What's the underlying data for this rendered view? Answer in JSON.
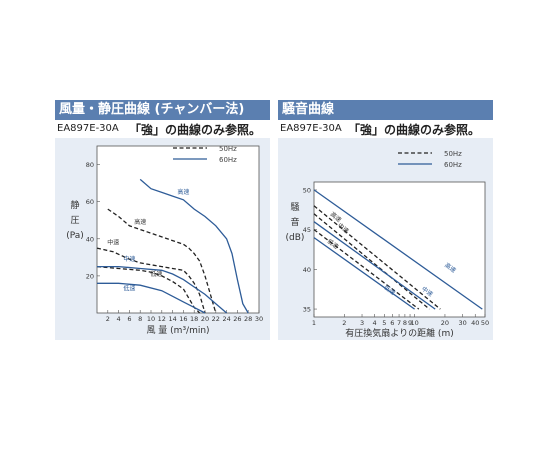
{
  "left_panel": {
    "title": "風量・静圧曲線 (チャンバー法)",
    "model": "EA897E-30A",
    "note": "「強」の曲線のみ参照。"
  },
  "right_panel": {
    "title": "騒音曲線",
    "model": "EA897E-30A",
    "note": "「強」の曲線のみ参照。"
  },
  "colors": {
    "blue": "#2e5c98",
    "dashed": "#222222",
    "header": "#5b7fb0",
    "plot_bg": "#e7edf5"
  },
  "chart_data": [
    {
      "type": "line",
      "xlabel": "風 量 (m³/min)",
      "ylabel_lines": [
        "静",
        "圧",
        "(Pa)"
      ],
      "xlim": [
        0,
        30
      ],
      "ylim": [
        0,
        90
      ],
      "xticks": [
        "2",
        "4",
        "6",
        "8",
        "10",
        "12",
        "14",
        "16",
        "18",
        "20",
        "22",
        "24",
        "26",
        "28",
        "30"
      ],
      "yticks": [
        "20",
        "40",
        "60",
        "80"
      ],
      "legend": [
        {
          "label": "50Hz",
          "style": "dashed"
        },
        {
          "label": "60Hz",
          "style": "solid"
        }
      ],
      "series": [
        {
          "hz": "50Hz",
          "style": "dashed",
          "label": "高速",
          "label_at": [
            8,
            48
          ],
          "points": [
            [
              2,
              56
            ],
            [
              4,
              52
            ],
            [
              6,
              47
            ],
            [
              8,
              45
            ],
            [
              10,
              43
            ],
            [
              12,
              41
            ],
            [
              14,
              39
            ],
            [
              16,
              37
            ],
            [
              17,
              35
            ],
            [
              18,
              32
            ],
            [
              19,
              28
            ],
            [
              20,
              20
            ],
            [
              21,
              10
            ],
            [
              22,
              0
            ]
          ]
        },
        {
          "hz": "50Hz",
          "style": "dashed",
          "label": "中速",
          "label_at": [
            3,
            37
          ],
          "points": [
            [
              0,
              35
            ],
            [
              3,
              33
            ],
            [
              6,
              29
            ],
            [
              8,
              27
            ],
            [
              10,
              26
            ],
            [
              12,
              25
            ],
            [
              14,
              24
            ],
            [
              16,
              23
            ],
            [
              17,
              20
            ],
            [
              18,
              16
            ],
            [
              19,
              10
            ],
            [
              20,
              0
            ]
          ]
        },
        {
          "hz": "50Hz",
          "style": "dashed",
          "label": "低速",
          "label_at": [
            11,
            20
          ],
          "points": [
            [
              0,
              25
            ],
            [
              4,
              24
            ],
            [
              8,
              23
            ],
            [
              10,
              22
            ],
            [
              12,
              20
            ],
            [
              14,
              17
            ],
            [
              16,
              13
            ],
            [
              17,
              8
            ],
            [
              18,
              3
            ],
            [
              19,
              0
            ]
          ]
        },
        {
          "hz": "60Hz",
          "style": "solid",
          "label": "高速",
          "label_at": [
            16,
            64
          ],
          "points": [
            [
              8,
              72
            ],
            [
              10,
              67
            ],
            [
              12,
              65
            ],
            [
              14,
              63
            ],
            [
              16,
              61
            ],
            [
              18,
              56
            ],
            [
              20,
              52
            ],
            [
              22,
              47
            ],
            [
              24,
              40
            ],
            [
              25,
              32
            ],
            [
              26,
              18
            ],
            [
              27,
              5
            ],
            [
              28,
              0
            ]
          ]
        },
        {
          "hz": "60Hz",
          "style": "solid",
          "label": "中速",
          "label_at": [
            6,
            28
          ],
          "points": [
            [
              0,
              25
            ],
            [
              4,
              25
            ],
            [
              8,
              24
            ],
            [
              12,
              23
            ],
            [
              14,
              21
            ],
            [
              16,
              18
            ],
            [
              18,
              14
            ],
            [
              20,
              10
            ],
            [
              22,
              5
            ],
            [
              24,
              0
            ]
          ]
        },
        {
          "hz": "60Hz",
          "style": "solid",
          "label": "低速",
          "label_at": [
            6,
            12
          ],
          "points": [
            [
              0,
              16
            ],
            [
              4,
              16
            ],
            [
              8,
              15
            ],
            [
              12,
              12
            ],
            [
              14,
              9
            ],
            [
              16,
              6
            ],
            [
              18,
              3
            ],
            [
              20,
              0
            ]
          ]
        }
      ]
    },
    {
      "type": "line",
      "xscale": "log",
      "xlabel": "有圧換気扇よりの距離 (m)",
      "ylabel_lines": [
        "騒",
        "音",
        "(dB)"
      ],
      "xlim": [
        1,
        50
      ],
      "ylim": [
        34,
        51
      ],
      "xticks": [
        {
          "v": 1,
          "t": "1"
        },
        {
          "v": 2,
          "t": "2"
        },
        {
          "v": 3,
          "t": "3"
        },
        {
          "v": 4,
          "t": "4"
        },
        {
          "v": 5,
          "t": "5"
        },
        {
          "v": 6,
          "t": "6"
        },
        {
          "v": 7,
          "t": "7"
        },
        {
          "v": 8,
          "t": "8"
        },
        {
          "v": 9,
          "t": "9"
        },
        {
          "v": 10,
          "t": "10"
        },
        {
          "v": 20,
          "t": "20"
        },
        {
          "v": 30,
          "t": "30"
        },
        {
          "v": 40,
          "t": "40"
        },
        {
          "v": 50,
          "t": "50"
        }
      ],
      "yticks": [
        "35",
        "40",
        "45",
        "50"
      ],
      "legend": [
        {
          "label": "50Hz",
          "style": "dashed"
        },
        {
          "label": "60Hz",
          "style": "solid"
        }
      ],
      "series": [
        {
          "hz": "60Hz",
          "style": "solid",
          "label": "高速",
          "label_at": [
            22,
            40
          ],
          "points": [
            [
              1,
              50
            ],
            [
              47,
              35
            ]
          ]
        },
        {
          "hz": "50Hz",
          "style": "dashed",
          "label": "高速",
          "label_at": [
            1.6,
            46.4
          ],
          "points": [
            [
              1,
              48
            ],
            [
              18,
              35
            ]
          ]
        },
        {
          "hz": "50Hz",
          "style": "dashed",
          "label": "中速",
          "label_at": [
            1.9,
            45
          ],
          "points": [
            [
              1,
              47
            ],
            [
              14,
              35
            ]
          ]
        },
        {
          "hz": "60Hz",
          "style": "solid",
          "label": "中速",
          "label_at": [
            13,
            37
          ],
          "points": [
            [
              1,
              46
            ],
            [
              16,
              35
            ]
          ]
        },
        {
          "hz": "50Hz",
          "style": "dashed",
          "label": "低速",
          "label_at": [
            1.5,
            43
          ],
          "points": [
            [
              1,
              45
            ],
            [
              11,
              35
            ]
          ]
        },
        {
          "hz": "60Hz",
          "style": "solid",
          "label": "低速",
          "label_at": [
            5.5,
            37.2
          ],
          "points": [
            [
              1,
              44
            ],
            [
              10,
              35
            ]
          ]
        }
      ]
    }
  ]
}
